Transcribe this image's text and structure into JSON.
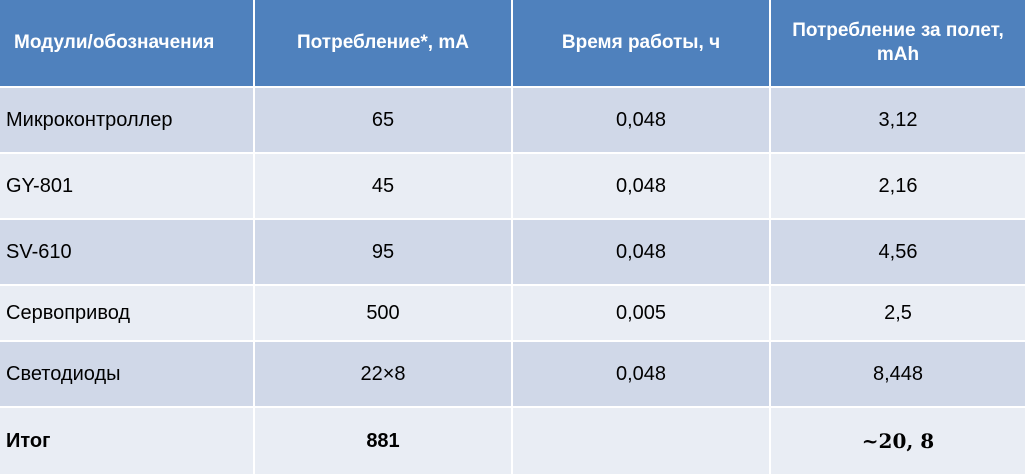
{
  "table": {
    "headers": [
      "Модули/обозначения",
      "Потребление*, mA",
      "Время работы, ч",
      "Потребление за полет, mAh"
    ],
    "rows": [
      [
        "Микроконтроллер",
        "65",
        "0,048",
        "3,12"
      ],
      [
        "GY-801",
        "45",
        "0,048",
        "2,16"
      ],
      [
        "SV-610",
        "95",
        "0,048",
        "4,56"
      ],
      [
        "Сервопривод",
        "500",
        "0,005",
        "2,5"
      ],
      [
        "Светодиоды",
        "22×8",
        "0,048",
        "8,448"
      ],
      [
        "Итог",
        "881",
        "",
        "~20, 8"
      ]
    ]
  },
  "colors": {
    "header_bg": "#4f81bd",
    "row_odd_bg": "#d0d8e8",
    "row_even_bg": "#e9edf4"
  }
}
